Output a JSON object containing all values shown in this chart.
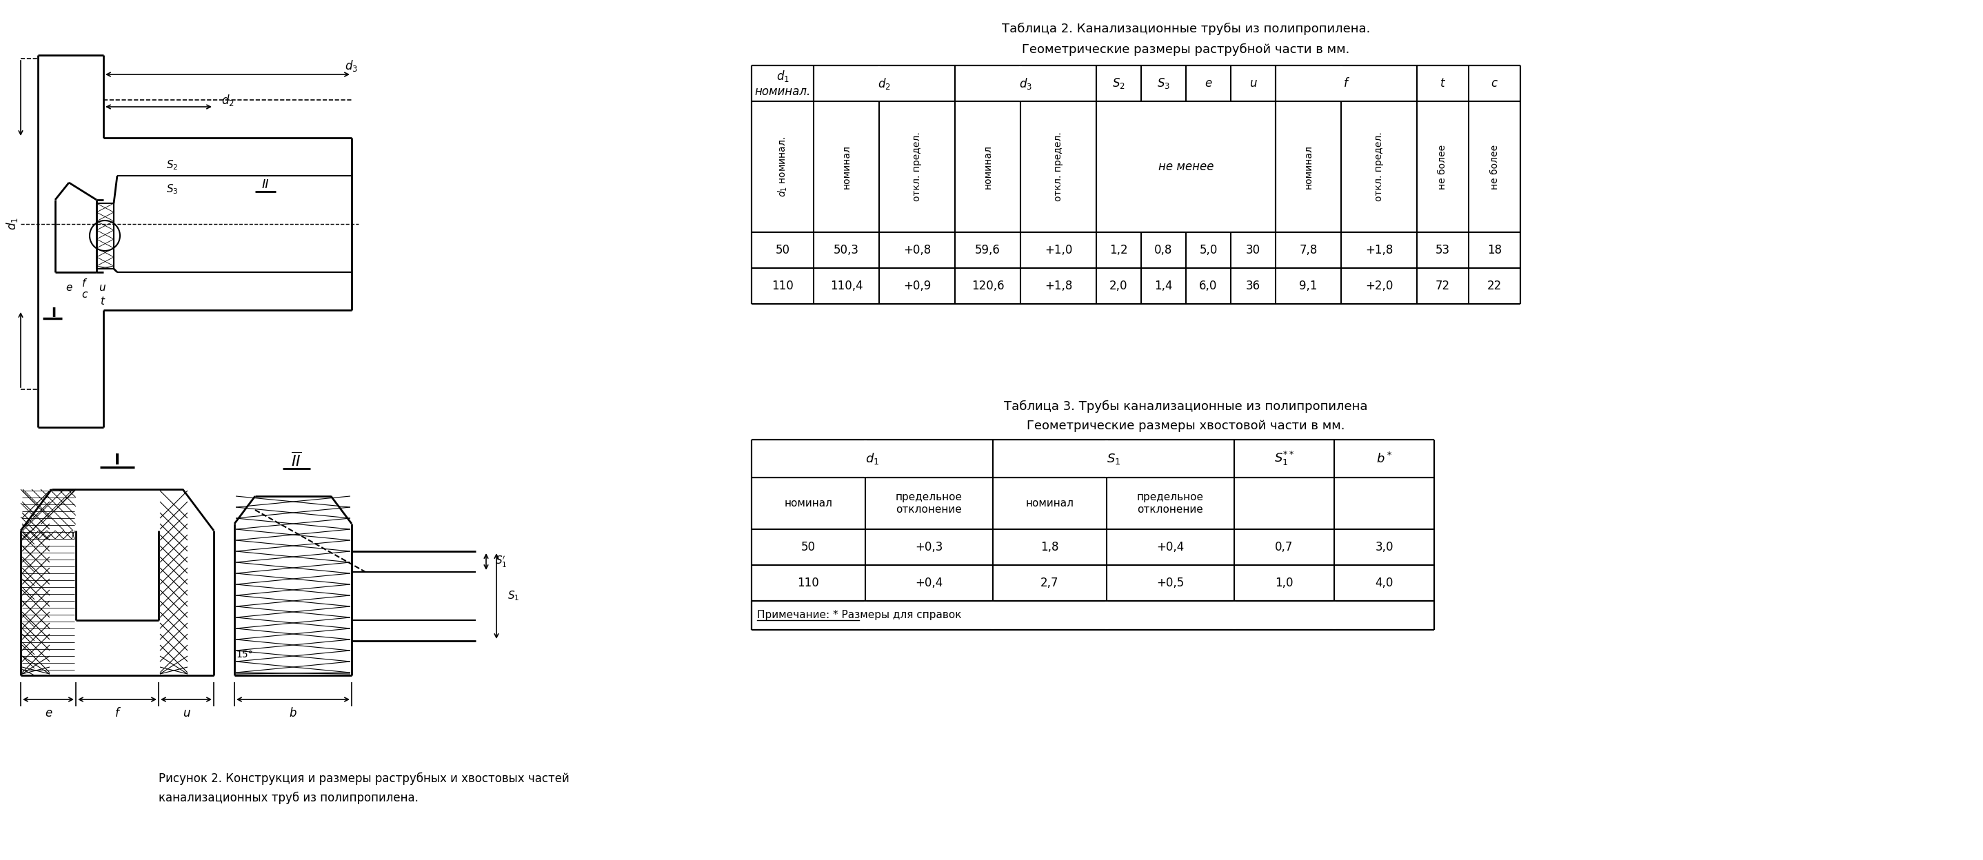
{
  "fig_caption_line1": "Рисунок 2. Конструкция и размеры раструбных и хвостовых частей",
  "fig_caption_line2": "канализационных труб из полипропилена.",
  "table2_title1": "Таблица 2. Канализационные трубы из полипропилена.",
  "table2_title2": "Геометрические размеры раструбной части в мм.",
  "table3_title1": "Таблица 3. Трубы канализационные из полипропилена",
  "table3_title2": "Геометрические размеры хвостовой части в мм.",
  "table2_data": [
    [
      "50",
      "50,3",
      "+0,8",
      "59,6",
      "+1,0",
      "1,2",
      "0,8",
      "5,0",
      "30",
      "7,8",
      "+1,8",
      "53",
      "18"
    ],
    [
      "110",
      "110,4",
      "+0,9",
      "120,6",
      "+1,8",
      "2,0",
      "1,4",
      "6,0",
      "36",
      "9,1",
      "+2,0",
      "72",
      "22"
    ]
  ],
  "table3_data": [
    [
      "50",
      "+0,3",
      "1,8",
      "+0,4",
      "0,7",
      "3,0"
    ],
    [
      "110",
      "+0,4",
      "2,7",
      "+0,5",
      "1,0",
      "4,0"
    ]
  ],
  "table3_note": "Примечание: * Размеры для справок",
  "bg_color": "#ffffff",
  "line_color": "#000000",
  "text_color": "#000000"
}
